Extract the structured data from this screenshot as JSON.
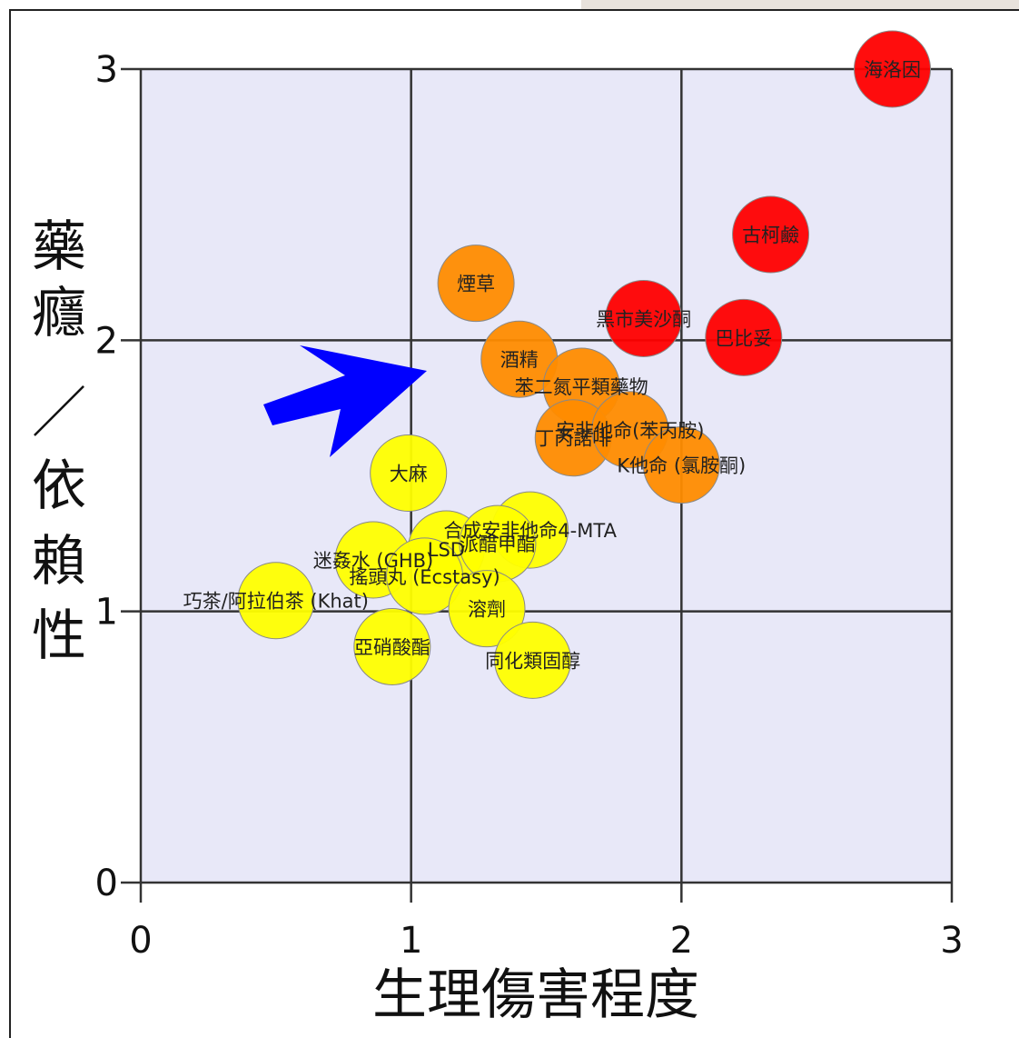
{
  "chart_data": {
    "type": "scatter",
    "xlabel": "生理傷害程度",
    "ylabel_chars": [
      "藥",
      "癮",
      "／",
      "依",
      "賴",
      "性"
    ],
    "xlim": [
      0,
      3
    ],
    "ylim": [
      0,
      3
    ],
    "x_ticks": [
      "0",
      "1",
      "2",
      "3"
    ],
    "y_ticks": [
      "0",
      "1",
      "2",
      "3"
    ],
    "grid": true,
    "points": [
      {
        "name": "海洛因",
        "x": 2.78,
        "y": 3.0,
        "color": "#ff0000"
      },
      {
        "name": "古柯鹼",
        "x": 2.33,
        "y": 2.39,
        "color": "#ff0000"
      },
      {
        "name": "黑市美沙酮",
        "x": 1.86,
        "y": 2.08,
        "color": "#ff0000"
      },
      {
        "name": "巴比妥",
        "x": 2.23,
        "y": 2.01,
        "color": "#ff0000"
      },
      {
        "name": "煙草",
        "x": 1.24,
        "y": 2.21,
        "color": "#ff8c00"
      },
      {
        "name": "酒精",
        "x": 1.4,
        "y": 1.93,
        "color": "#ff8c00"
      },
      {
        "name": "苯二氮平類藥物",
        "x": 1.63,
        "y": 1.83,
        "color": "#ff8c00"
      },
      {
        "name": "丁丙諾啡",
        "x": 1.6,
        "y": 1.64,
        "color": "#ff8c00"
      },
      {
        "name": "安非他命(苯丙胺)",
        "x": 1.81,
        "y": 1.67,
        "color": "#ff8c00"
      },
      {
        "name": "K他命 (氯胺酮)",
        "x": 2.0,
        "y": 1.54,
        "color": "#ff8c00"
      },
      {
        "name": "大麻",
        "x": 0.99,
        "y": 1.51,
        "color": "#ffff00"
      },
      {
        "name": "LSD",
        "x": 1.13,
        "y": 1.23,
        "color": "#ffff00"
      },
      {
        "name": "合成安非他命4-MTA",
        "x": 1.44,
        "y": 1.3,
        "color": "#ffff00"
      },
      {
        "name": "派醋甲酯",
        "x": 1.32,
        "y": 1.25,
        "color": "#ffff00"
      },
      {
        "name": "迷姦水 (GHB)",
        "x": 0.86,
        "y": 1.19,
        "color": "#ffff00"
      },
      {
        "name": "搖頭丸 (Ecstasy)",
        "x": 1.05,
        "y": 1.13,
        "color": "#ffff00"
      },
      {
        "name": "巧茶/阿拉伯茶 (Khat)",
        "x": 0.5,
        "y": 1.04,
        "color": "#ffff00"
      },
      {
        "name": "溶劑",
        "x": 1.28,
        "y": 1.01,
        "color": "#ffff00"
      },
      {
        "name": "亞硝酸酯",
        "x": 0.93,
        "y": 0.87,
        "color": "#ffff00"
      },
      {
        "name": "同化類固醇",
        "x": 1.45,
        "y": 0.82,
        "color": "#ffff00"
      }
    ]
  },
  "colors": {
    "plot_background": "#e8e8f8",
    "grid": "#333333",
    "arrow": "#0000ff",
    "severe": "#ff0000",
    "medium": "#ff8c00",
    "low": "#ffff00"
  },
  "annotation": {
    "icon": "blue-arrow-icon"
  }
}
